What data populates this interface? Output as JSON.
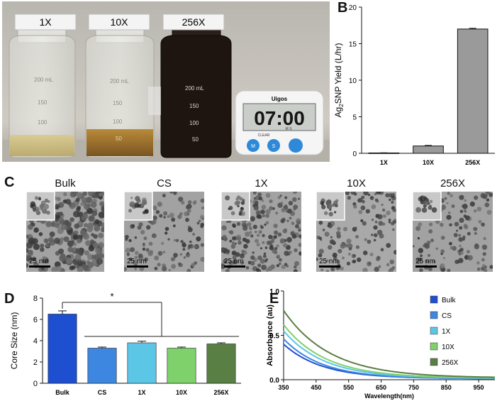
{
  "panels": {
    "A": "A",
    "B": "B",
    "C": "C",
    "D": "D",
    "E": "E"
  },
  "photo": {
    "bottle_labels": [
      "1X",
      "10X",
      "256X"
    ],
    "bottle_marks": [
      "200 mL",
      "150",
      "100",
      "50"
    ],
    "timer_brand": "Uigos",
    "timer_display": "07:00",
    "timer_display_sub": "M  S",
    "timer_clear": "CLEAR",
    "timer_buttons": [
      "M",
      "S",
      ""
    ]
  },
  "tem": {
    "labels": [
      "Bulk",
      "CS",
      "1X",
      "10X",
      "256X"
    ],
    "scale_bar": "25 nm"
  },
  "chart_data": [
    {
      "panel": "B",
      "type": "bar",
      "ylabel_main": "Ag",
      "ylabel_sub": "2",
      "ylabel_rest": "SNP Yield (L/hr)",
      "categories": [
        "1X",
        "10X",
        "256X"
      ],
      "values": [
        0.05,
        1.0,
        17.0
      ],
      "errors": [
        0.02,
        0.08,
        0.1
      ],
      "ylim": [
        0,
        20
      ],
      "yticks": [
        0,
        5,
        10,
        15,
        20
      ],
      "color": "#9a9a9a"
    },
    {
      "panel": "D",
      "type": "bar",
      "ylabel": "Core Size (nm)",
      "categories": [
        "Bulk",
        "CS",
        "1X",
        "10X",
        "256X"
      ],
      "values": [
        6.5,
        3.3,
        3.8,
        3.3,
        3.7
      ],
      "errors": [
        0.3,
        0.1,
        0.15,
        0.1,
        0.1
      ],
      "colors": [
        "#1f4fd1",
        "#3d87e0",
        "#5cc6e6",
        "#7fd16b",
        "#5a7f45"
      ],
      "ylim": [
        0,
        8
      ],
      "yticks": [
        0,
        2,
        4,
        6,
        8
      ],
      "significance": "*"
    },
    {
      "panel": "E",
      "type": "line",
      "xlabel": "Wavelength(nm)",
      "ylabel": "Absorbance (au)",
      "xlim": [
        350,
        1000
      ],
      "ylim": [
        0,
        1.0
      ],
      "xticks": [
        350,
        450,
        550,
        650,
        750,
        850,
        950
      ],
      "yticks": [
        0.0,
        0.5,
        1.0
      ],
      "ytick_labels": [
        "0.0",
        "0.5",
        "1.0"
      ],
      "series": [
        {
          "name": "Bulk",
          "color": "#1f4fd1",
          "a0": 0.4,
          "k": 0.0085,
          "base": 0.012
        },
        {
          "name": "CS",
          "color": "#3d87e0",
          "a0": 0.46,
          "k": 0.0085,
          "base": 0.012
        },
        {
          "name": "1X",
          "color": "#5cc6e6",
          "a0": 0.55,
          "k": 0.008,
          "base": 0.015
        },
        {
          "name": "10X",
          "color": "#7fd16b",
          "a0": 0.62,
          "k": 0.0078,
          "base": 0.018
        },
        {
          "name": "256X",
          "color": "#5a7f45",
          "a0": 0.78,
          "k": 0.007,
          "base": 0.02
        }
      ]
    }
  ]
}
